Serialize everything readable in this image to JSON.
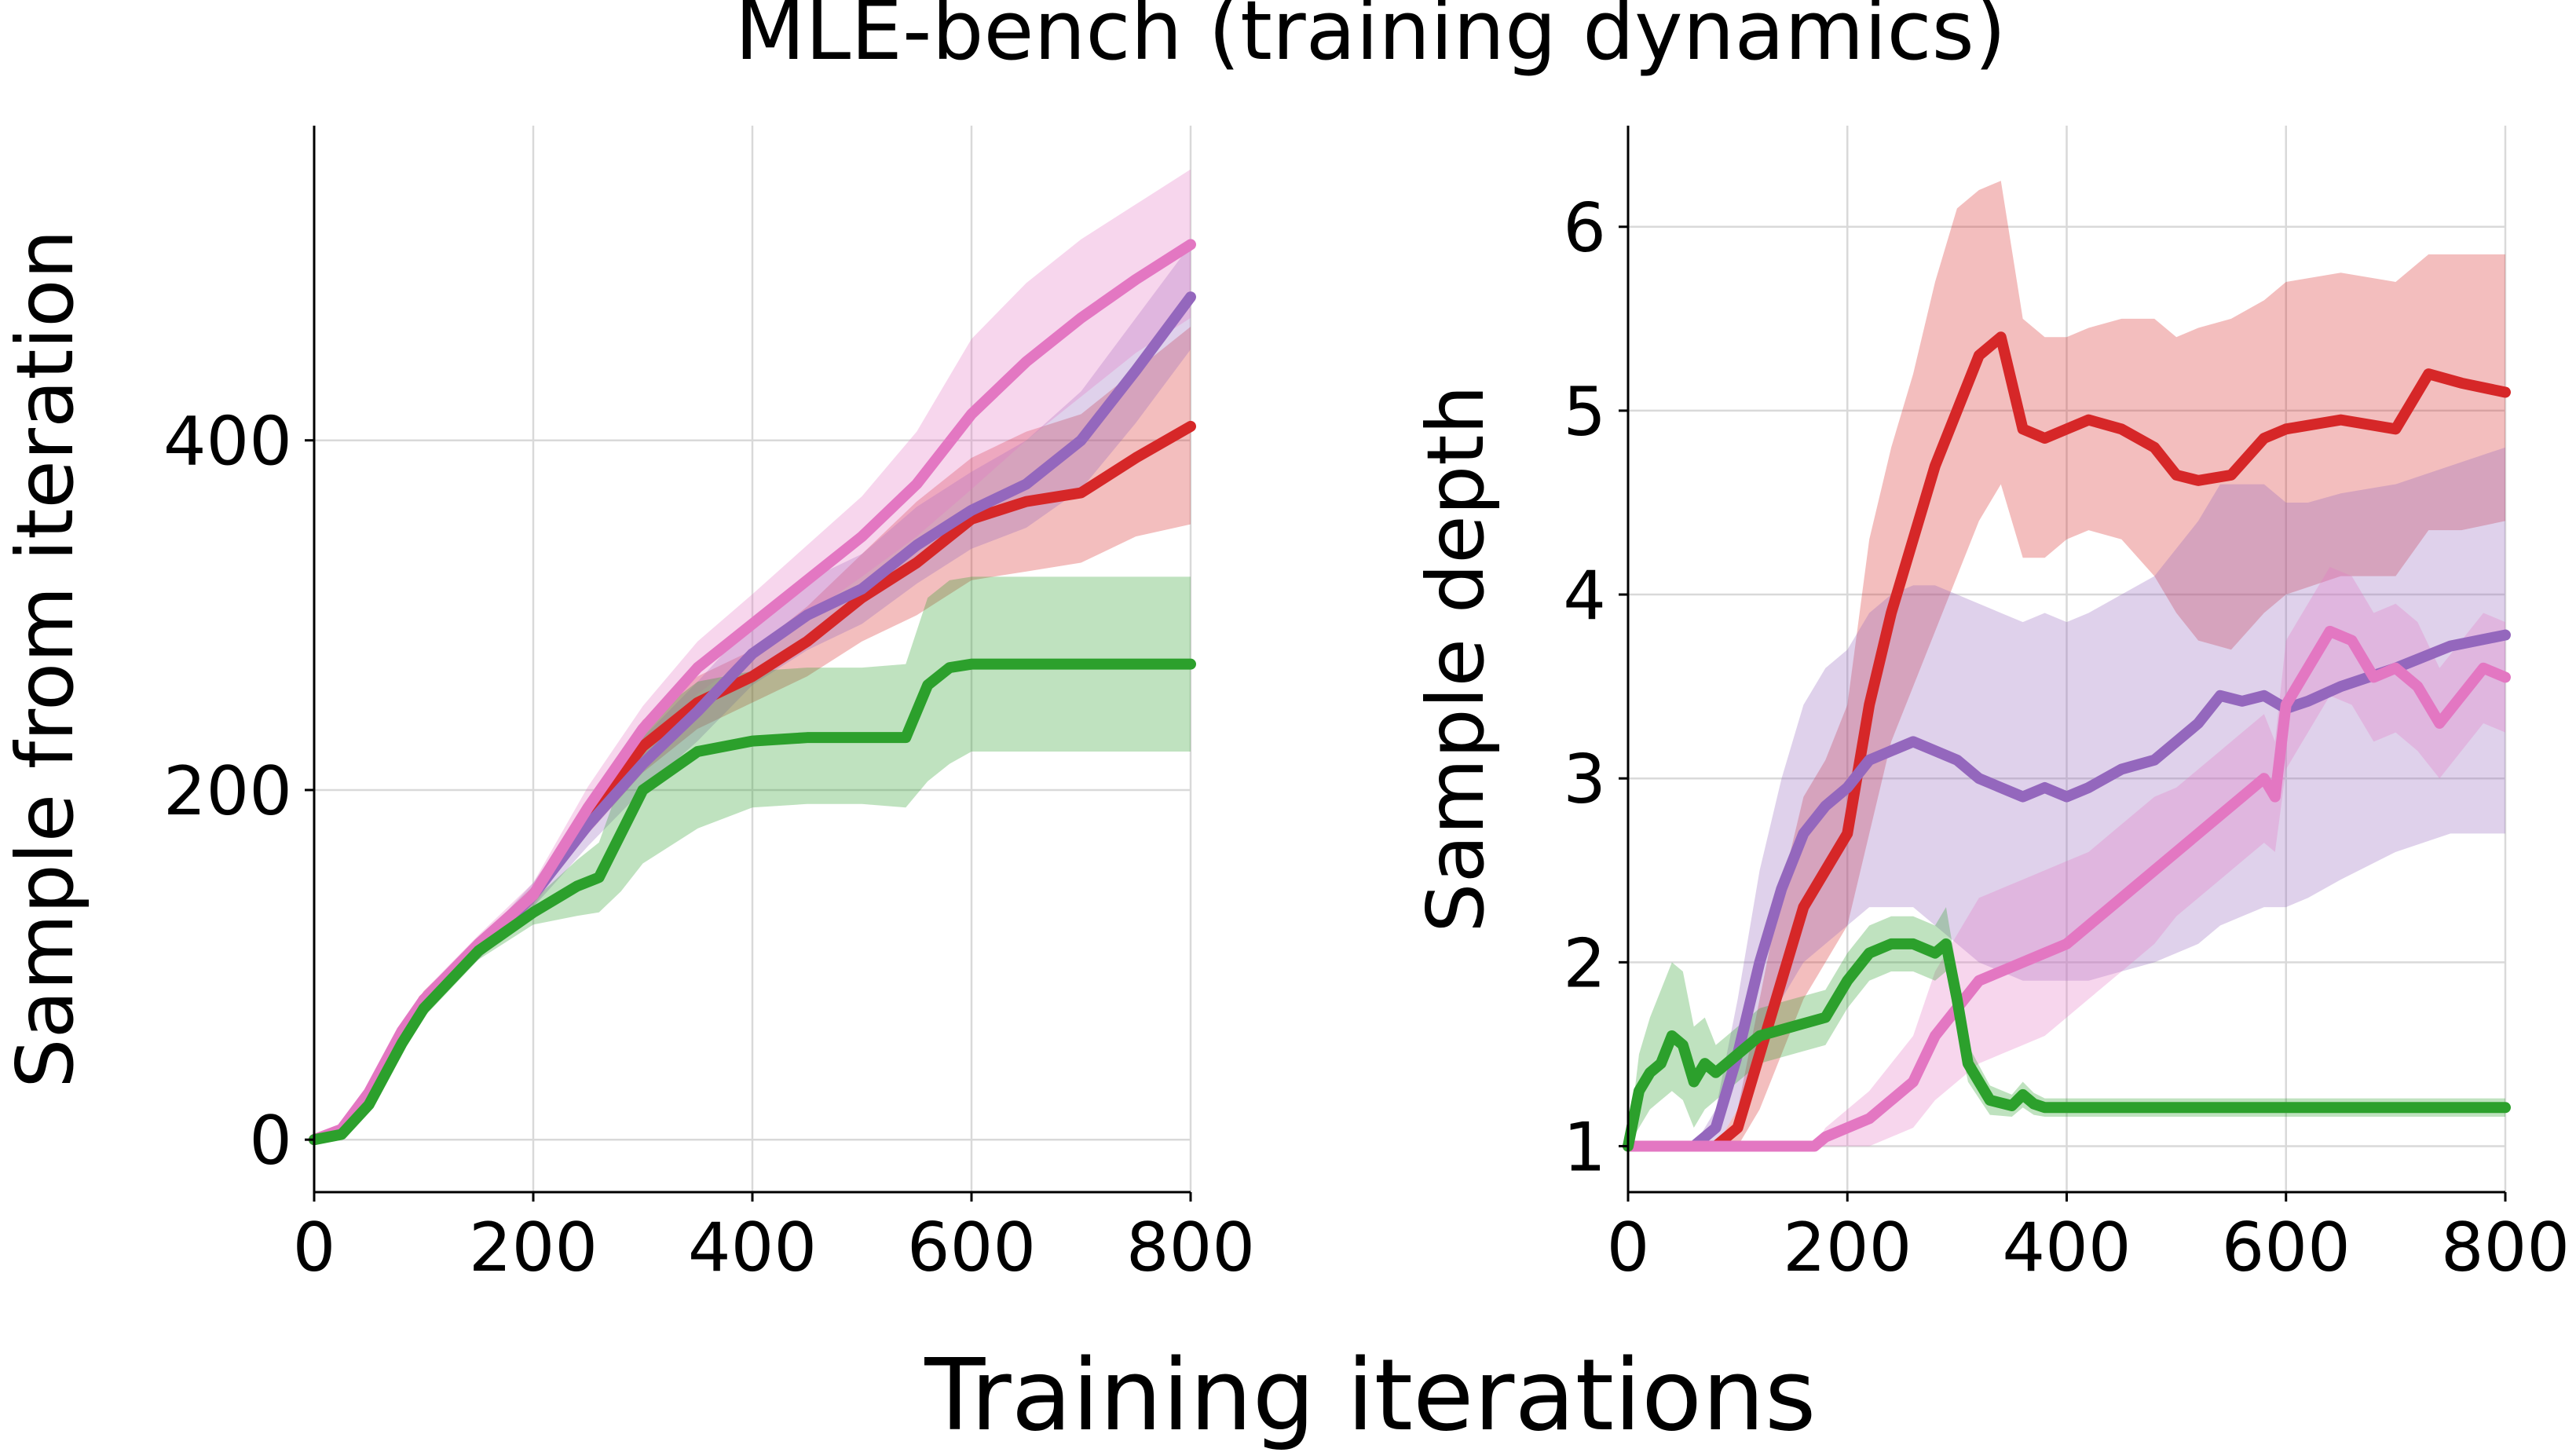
{
  "figure": {
    "title": "MLE-bench (training dynamics)",
    "xlabel": "Training iterations"
  },
  "colors": {
    "red": "#d62728",
    "purple": "#9467bd",
    "pink": "#e377c2",
    "green": "#2ca02c"
  },
  "chart_data": [
    {
      "type": "line",
      "ylabel": "Sample from iteration",
      "xlim": [
        0,
        800
      ],
      "ylim": [
        -30,
        580
      ],
      "xticks": [
        0,
        200,
        400,
        600,
        800
      ],
      "yticks": [
        0,
        200,
        400
      ],
      "xtick_labels": [
        "0",
        "200",
        "400",
        "600",
        "800"
      ],
      "ytick_labels": [
        "0",
        "200",
        "400"
      ],
      "grid": true,
      "series": [
        {
          "name": "red",
          "color": "red",
          "x": [
            0,
            25,
            50,
            80,
            100,
            150,
            200,
            250,
            300,
            350,
            400,
            450,
            500,
            550,
            600,
            650,
            700,
            750,
            800
          ],
          "values": [
            0,
            5,
            25,
            60,
            80,
            110,
            140,
            185,
            225,
            250,
            265,
            285,
            310,
            330,
            355,
            365,
            370,
            390,
            408
          ],
          "lower": [
            0,
            4,
            22,
            55,
            75,
            105,
            135,
            175,
            210,
            235,
            250,
            265,
            285,
            300,
            320,
            325,
            330,
            345,
            352
          ],
          "upper": [
            0,
            6,
            28,
            65,
            85,
            115,
            145,
            195,
            240,
            265,
            280,
            305,
            335,
            365,
            390,
            405,
            415,
            440,
            465
          ]
        },
        {
          "name": "purple",
          "color": "purple",
          "x": [
            0,
            25,
            50,
            80,
            100,
            150,
            200,
            250,
            300,
            350,
            400,
            450,
            500,
            550,
            600,
            650,
            700,
            750,
            800
          ],
          "values": [
            0,
            5,
            24,
            58,
            78,
            108,
            140,
            180,
            215,
            245,
            278,
            300,
            315,
            340,
            360,
            375,
            400,
            440,
            482
          ],
          "lower": [
            0,
            4,
            21,
            53,
            73,
            103,
            133,
            168,
            200,
            228,
            260,
            280,
            295,
            318,
            338,
            350,
            372,
            410,
            452
          ],
          "upper": [
            0,
            6,
            27,
            63,
            83,
            113,
            147,
            192,
            230,
            262,
            296,
            320,
            335,
            362,
            382,
            400,
            428,
            470,
            512
          ]
        },
        {
          "name": "pink",
          "color": "pink",
          "x": [
            0,
            25,
            50,
            80,
            100,
            150,
            200,
            250,
            300,
            350,
            400,
            450,
            500,
            550,
            600,
            650,
            700,
            750,
            800
          ],
          "values": [
            0,
            6,
            27,
            62,
            80,
            112,
            140,
            190,
            235,
            270,
            295,
            320,
            345,
            375,
            415,
            445,
            470,
            492,
            512
          ],
          "lower": [
            0,
            5,
            24,
            57,
            75,
            107,
            133,
            178,
            222,
            255,
            278,
            300,
            322,
            345,
            372,
            400,
            425,
            450,
            470
          ],
          "upper": [
            0,
            7,
            30,
            67,
            85,
            117,
            147,
            202,
            248,
            285,
            312,
            340,
            368,
            405,
            458,
            490,
            515,
            535,
            555
          ]
        },
        {
          "name": "green",
          "color": "green",
          "x": [
            0,
            25,
            50,
            80,
            100,
            150,
            200,
            240,
            260,
            280,
            300,
            350,
            400,
            450,
            500,
            540,
            560,
            580,
            600,
            800
          ],
          "values": [
            0,
            3,
            20,
            55,
            75,
            108,
            130,
            145,
            150,
            175,
            200,
            222,
            228,
            230,
            230,
            230,
            260,
            270,
            272,
            272
          ],
          "lower": [
            0,
            2,
            18,
            50,
            70,
            103,
            123,
            128,
            130,
            142,
            158,
            178,
            190,
            192,
            192,
            190,
            205,
            215,
            222,
            222
          ],
          "upper": [
            0,
            4,
            22,
            60,
            80,
            113,
            137,
            160,
            170,
            205,
            238,
            262,
            268,
            270,
            270,
            272,
            310,
            320,
            322,
            322
          ]
        }
      ]
    },
    {
      "type": "line",
      "ylabel": "Sample depth",
      "xlim": [
        0,
        800
      ],
      "ylim": [
        0.75,
        6.55
      ],
      "xticks": [
        0,
        200,
        400,
        600,
        800
      ],
      "yticks": [
        1,
        2,
        3,
        4,
        5,
        6
      ],
      "xtick_labels": [
        "0",
        "200",
        "400",
        "600",
        "800"
      ],
      "ytick_labels": [
        "1",
        "2",
        "3",
        "4",
        "5",
        "6"
      ],
      "grid": true,
      "series": [
        {
          "name": "red",
          "color": "red",
          "x": [
            0,
            80,
            100,
            120,
            140,
            160,
            180,
            200,
            220,
            240,
            260,
            280,
            300,
            320,
            340,
            360,
            380,
            400,
            420,
            450,
            480,
            500,
            520,
            550,
            580,
            600,
            650,
            700,
            730,
            760,
            800
          ],
          "values": [
            1,
            1,
            1.1,
            1.5,
            1.9,
            2.3,
            2.5,
            2.7,
            3.4,
            3.9,
            4.3,
            4.7,
            5.0,
            5.3,
            5.4,
            4.9,
            4.85,
            4.9,
            4.95,
            4.9,
            4.8,
            4.65,
            4.62,
            4.65,
            4.85,
            4.9,
            4.95,
            4.9,
            5.2,
            5.15,
            5.1
          ],
          "lower": [
            1,
            1,
            1.0,
            1.2,
            1.5,
            1.8,
            2.0,
            2.2,
            2.7,
            3.2,
            3.5,
            3.8,
            4.1,
            4.4,
            4.6,
            4.2,
            4.2,
            4.3,
            4.35,
            4.3,
            4.1,
            3.9,
            3.75,
            3.7,
            3.9,
            4.0,
            4.1,
            4.1,
            4.35,
            4.35,
            4.4
          ],
          "upper": [
            1,
            1,
            1.2,
            1.8,
            2.4,
            2.9,
            3.1,
            3.4,
            4.3,
            4.8,
            5.2,
            5.7,
            6.1,
            6.2,
            6.25,
            5.5,
            5.4,
            5.4,
            5.45,
            5.5,
            5.5,
            5.4,
            5.45,
            5.5,
            5.6,
            5.7,
            5.75,
            5.7,
            5.85,
            5.85,
            5.85
          ]
        },
        {
          "name": "purple",
          "color": "purple",
          "x": [
            0,
            60,
            80,
            100,
            120,
            140,
            160,
            180,
            200,
            220,
            240,
            260,
            280,
            300,
            320,
            340,
            360,
            380,
            400,
            420,
            450,
            480,
            500,
            520,
            540,
            560,
            580,
            600,
            620,
            650,
            700,
            750,
            800
          ],
          "values": [
            1,
            1,
            1.1,
            1.5,
            2.0,
            2.4,
            2.7,
            2.85,
            2.95,
            3.1,
            3.15,
            3.2,
            3.15,
            3.1,
            3.0,
            2.95,
            2.9,
            2.95,
            2.9,
            2.95,
            3.05,
            3.1,
            3.2,
            3.3,
            3.45,
            3.42,
            3.45,
            3.38,
            3.42,
            3.5,
            3.6,
            3.72,
            3.78
          ],
          "lower": [
            1,
            1,
            1.0,
            1.2,
            1.5,
            1.8,
            2.0,
            2.1,
            2.2,
            2.3,
            2.3,
            2.3,
            2.2,
            2.1,
            2.0,
            1.95,
            1.9,
            1.9,
            1.9,
            1.9,
            1.95,
            2.0,
            2.05,
            2.1,
            2.2,
            2.25,
            2.3,
            2.3,
            2.35,
            2.45,
            2.6,
            2.7,
            2.7
          ],
          "upper": [
            1,
            1,
            1.2,
            1.8,
            2.5,
            3.0,
            3.4,
            3.6,
            3.7,
            3.9,
            4.0,
            4.05,
            4.05,
            4.0,
            3.95,
            3.9,
            3.85,
            3.9,
            3.85,
            3.9,
            4.0,
            4.1,
            4.25,
            4.4,
            4.6,
            4.6,
            4.6,
            4.5,
            4.5,
            4.55,
            4.6,
            4.7,
            4.8
          ]
        },
        {
          "name": "pink",
          "color": "pink",
          "x": [
            0,
            170,
            180,
            200,
            220,
            240,
            260,
            280,
            300,
            320,
            340,
            360,
            380,
            400,
            420,
            440,
            460,
            480,
            500,
            520,
            540,
            560,
            580,
            590,
            600,
            620,
            640,
            660,
            680,
            700,
            720,
            740,
            760,
            780,
            800
          ],
          "values": [
            1,
            1,
            1.05,
            1.1,
            1.15,
            1.25,
            1.35,
            1.6,
            1.75,
            1.9,
            1.95,
            2.0,
            2.05,
            2.1,
            2.2,
            2.3,
            2.4,
            2.5,
            2.6,
            2.7,
            2.8,
            2.9,
            3.0,
            2.9,
            3.4,
            3.6,
            3.8,
            3.75,
            3.55,
            3.6,
            3.5,
            3.3,
            3.45,
            3.6,
            3.55
          ],
          "lower": [
            1,
            1,
            1.0,
            1.0,
            1.0,
            1.05,
            1.1,
            1.25,
            1.35,
            1.45,
            1.5,
            1.55,
            1.6,
            1.7,
            1.8,
            1.9,
            2.0,
            2.1,
            2.25,
            2.35,
            2.45,
            2.55,
            2.65,
            2.6,
            3.05,
            3.25,
            3.45,
            3.4,
            3.2,
            3.25,
            3.15,
            3.0,
            3.15,
            3.3,
            3.25
          ],
          "upper": [
            1,
            1,
            1.1,
            1.2,
            1.3,
            1.45,
            1.6,
            1.95,
            2.15,
            2.35,
            2.4,
            2.45,
            2.5,
            2.55,
            2.6,
            2.7,
            2.8,
            2.9,
            2.95,
            3.05,
            3.15,
            3.25,
            3.35,
            3.2,
            3.75,
            3.95,
            4.15,
            4.1,
            3.9,
            3.95,
            3.85,
            3.6,
            3.75,
            3.9,
            3.85
          ]
        },
        {
          "name": "green",
          "color": "green",
          "x": [
            0,
            10,
            20,
            30,
            40,
            50,
            60,
            70,
            80,
            100,
            120,
            150,
            180,
            200,
            220,
            240,
            260,
            280,
            290,
            300,
            310,
            330,
            350,
            360,
            370,
            380,
            400,
            800
          ],
          "values": [
            1,
            1.3,
            1.4,
            1.45,
            1.6,
            1.55,
            1.35,
            1.45,
            1.4,
            1.5,
            1.6,
            1.65,
            1.7,
            1.9,
            2.05,
            2.1,
            2.1,
            2.05,
            2.1,
            1.8,
            1.45,
            1.25,
            1.22,
            1.28,
            1.23,
            1.21,
            1.21,
            1.21
          ],
          "lower": [
            1,
            1.1,
            1.2,
            1.25,
            1.3,
            1.25,
            1.1,
            1.2,
            1.25,
            1.35,
            1.45,
            1.5,
            1.55,
            1.75,
            1.9,
            1.95,
            1.95,
            1.9,
            1.95,
            1.65,
            1.35,
            1.17,
            1.16,
            1.21,
            1.17,
            1.16,
            1.16,
            1.16
          ],
          "upper": [
            1,
            1.5,
            1.7,
            1.85,
            2.0,
            1.95,
            1.65,
            1.7,
            1.55,
            1.65,
            1.75,
            1.8,
            1.85,
            2.05,
            2.2,
            2.25,
            2.25,
            2.2,
            2.3,
            1.95,
            1.55,
            1.33,
            1.28,
            1.35,
            1.29,
            1.26,
            1.26,
            1.26
          ]
        }
      ]
    }
  ]
}
